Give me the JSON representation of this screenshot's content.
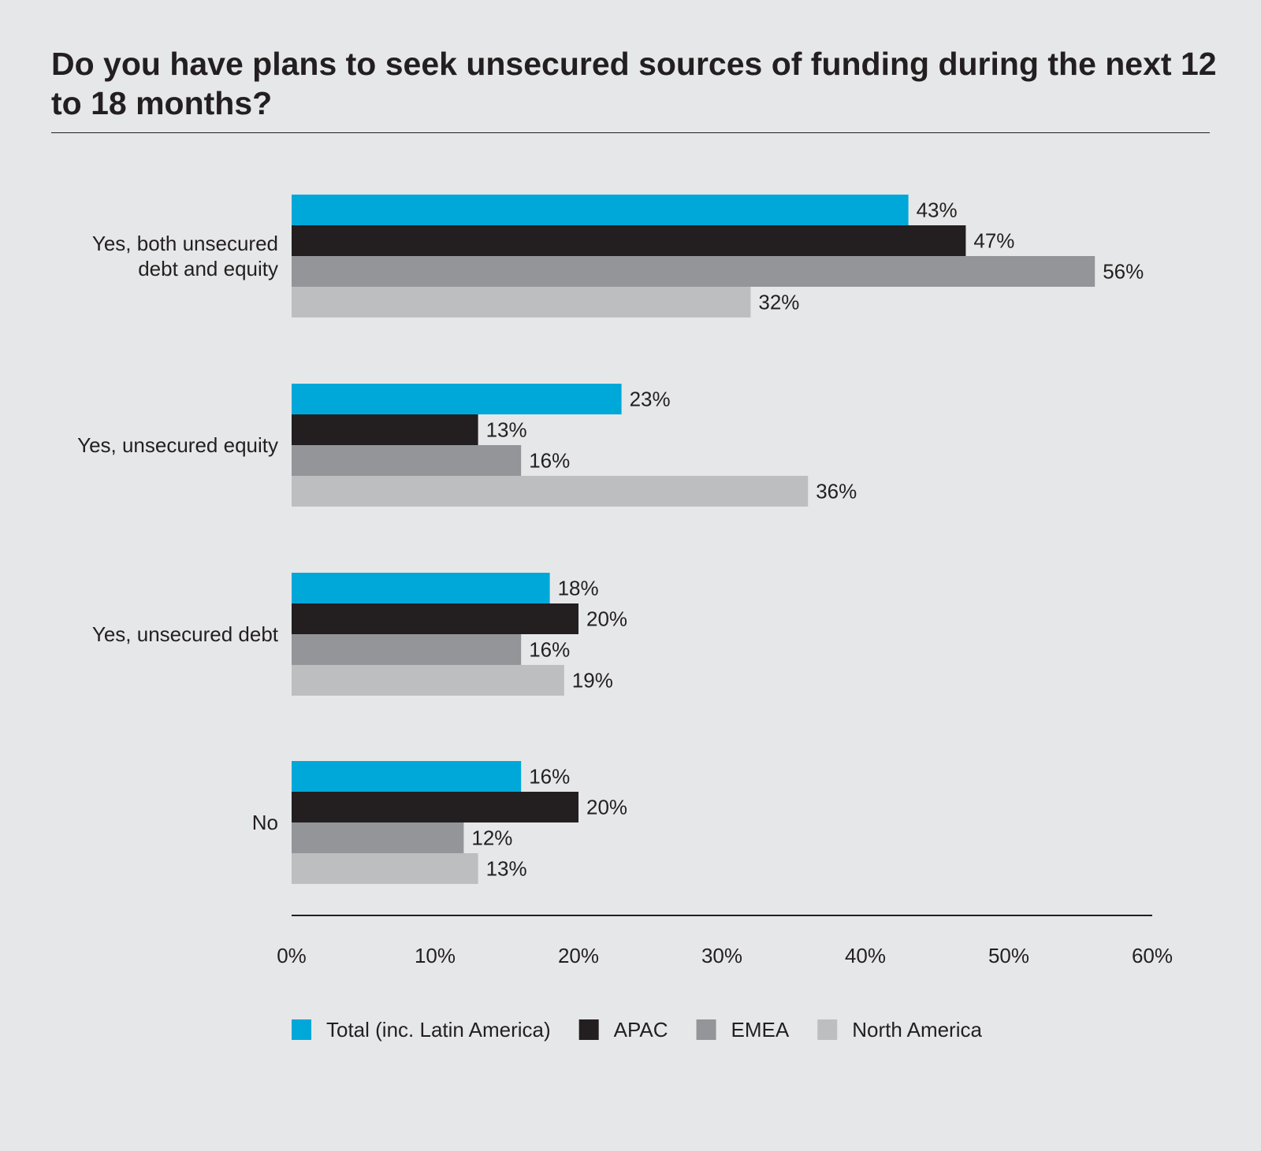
{
  "chart_data": {
    "type": "bar",
    "orientation": "horizontal",
    "title": "Do you have plans to seek unsecured sources of funding during the next 12 to 18 months?",
    "categories": [
      [
        "Yes, both unsecured",
        "debt and equity"
      ],
      [
        "Yes, unsecured equity"
      ],
      [
        "Yes, unsecured debt"
      ],
      [
        "No"
      ]
    ],
    "series": [
      {
        "name": "Total (inc. Latin America)",
        "color": "#00a8d9",
        "values": [
          43,
          23,
          18,
          16
        ]
      },
      {
        "name": "APAC",
        "color": "#231f20",
        "values": [
          47,
          13,
          20,
          20
        ]
      },
      {
        "name": "EMEA",
        "color": "#939598",
        "values": [
          56,
          16,
          16,
          12
        ]
      },
      {
        "name": "North America",
        "color": "#bcbec0",
        "values": [
          32,
          36,
          19,
          13
        ]
      }
    ],
    "xlim": [
      0,
      60
    ],
    "xticks": [
      "0%",
      "10%",
      "20%",
      "30%",
      "40%",
      "50%",
      "60%"
    ],
    "value_suffix": "%",
    "legend_position": "bottom",
    "grid": false
  }
}
